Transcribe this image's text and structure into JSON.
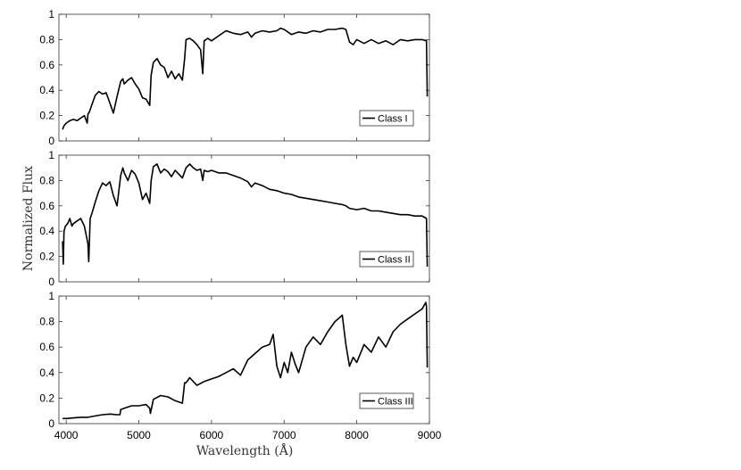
{
  "chart_data": {
    "type": "line",
    "xlabel": "Wavelength (Å)",
    "ylabel": "Normalized Flux",
    "xlim": [
      3900,
      9000
    ],
    "ylim": [
      0,
      1
    ],
    "xticks": [
      "4000",
      "5000",
      "6000",
      "7000",
      "8000",
      "9000"
    ],
    "yticks": [
      "0",
      "0.2",
      "0.4",
      "0.6",
      "0.8",
      "1"
    ],
    "line_color": "#000000",
    "legend_position": "bottom-right",
    "panels": [
      {
        "legend": "Class I",
        "x": [
          3950,
          3970,
          4000,
          4050,
          4100,
          4150,
          4200,
          4250,
          4290,
          4300,
          4320,
          4350,
          4400,
          4450,
          4500,
          4550,
          4600,
          4650,
          4700,
          4750,
          4780,
          4800,
          4850,
          4900,
          4950,
          5000,
          5050,
          5100,
          5150,
          5170,
          5200,
          5250,
          5300,
          5350,
          5400,
          5450,
          5500,
          5550,
          5600,
          5630,
          5650,
          5700,
          5750,
          5800,
          5850,
          5880,
          5900,
          5950,
          6000,
          6100,
          6200,
          6300,
          6400,
          6500,
          6550,
          6600,
          6700,
          6800,
          6900,
          6950,
          7000,
          7100,
          7200,
          7300,
          7400,
          7500,
          7600,
          7700,
          7800,
          7850,
          7900,
          7950,
          8000,
          8100,
          8200,
          8300,
          8400,
          8500,
          8600,
          8700,
          8800,
          8900,
          8960,
          8970
        ],
        "y": [
          0.09,
          0.12,
          0.14,
          0.16,
          0.17,
          0.16,
          0.18,
          0.2,
          0.14,
          0.21,
          0.23,
          0.28,
          0.36,
          0.39,
          0.37,
          0.38,
          0.3,
          0.22,
          0.35,
          0.47,
          0.49,
          0.45,
          0.48,
          0.5,
          0.45,
          0.41,
          0.34,
          0.33,
          0.28,
          0.52,
          0.62,
          0.65,
          0.6,
          0.58,
          0.5,
          0.55,
          0.49,
          0.53,
          0.48,
          0.65,
          0.8,
          0.81,
          0.79,
          0.76,
          0.72,
          0.53,
          0.79,
          0.81,
          0.79,
          0.83,
          0.87,
          0.85,
          0.84,
          0.86,
          0.82,
          0.85,
          0.87,
          0.86,
          0.87,
          0.89,
          0.88,
          0.84,
          0.86,
          0.85,
          0.87,
          0.86,
          0.88,
          0.88,
          0.89,
          0.88,
          0.78,
          0.76,
          0.8,
          0.77,
          0.8,
          0.77,
          0.79,
          0.76,
          0.8,
          0.79,
          0.8,
          0.8,
          0.79,
          0.35
        ]
      },
      {
        "legend": "Class II",
        "x": [
          3950,
          3960,
          3970,
          3990,
          4020,
          4050,
          4080,
          4100,
          4150,
          4200,
          4250,
          4300,
          4310,
          4330,
          4360,
          4400,
          4450,
          4500,
          4550,
          4600,
          4650,
          4700,
          4750,
          4780,
          4800,
          4850,
          4900,
          4950,
          5000,
          5050,
          5100,
          5150,
          5170,
          5200,
          5250,
          5300,
          5350,
          5400,
          5450,
          5500,
          5550,
          5600,
          5650,
          5700,
          5750,
          5800,
          5850,
          5880,
          5900,
          5950,
          6000,
          6100,
          6200,
          6300,
          6400,
          6500,
          6550,
          6600,
          6700,
          6800,
          6900,
          7000,
          7100,
          7200,
          7300,
          7400,
          7500,
          7600,
          7700,
          7800,
          7850,
          7900,
          8000,
          8100,
          8200,
          8300,
          8400,
          8500,
          8600,
          8700,
          8800,
          8900,
          8960,
          8970
        ],
        "y": [
          0.32,
          0.14,
          0.4,
          0.44,
          0.46,
          0.5,
          0.44,
          0.46,
          0.48,
          0.5,
          0.44,
          0.3,
          0.16,
          0.5,
          0.55,
          0.63,
          0.72,
          0.78,
          0.76,
          0.79,
          0.68,
          0.6,
          0.84,
          0.9,
          0.86,
          0.8,
          0.88,
          0.85,
          0.78,
          0.65,
          0.7,
          0.62,
          0.8,
          0.91,
          0.93,
          0.86,
          0.89,
          0.87,
          0.83,
          0.88,
          0.85,
          0.82,
          0.9,
          0.93,
          0.9,
          0.88,
          0.89,
          0.8,
          0.88,
          0.87,
          0.88,
          0.86,
          0.86,
          0.84,
          0.82,
          0.79,
          0.75,
          0.78,
          0.76,
          0.73,
          0.72,
          0.7,
          0.69,
          0.67,
          0.66,
          0.65,
          0.64,
          0.63,
          0.62,
          0.61,
          0.6,
          0.58,
          0.57,
          0.58,
          0.56,
          0.56,
          0.55,
          0.54,
          0.53,
          0.53,
          0.52,
          0.52,
          0.5,
          0.12
        ]
      },
      {
        "legend": "Class III",
        "x": [
          3950,
          4000,
          4100,
          4200,
          4300,
          4400,
          4500,
          4600,
          4700,
          4740,
          4750,
          4800,
          4900,
          5000,
          5100,
          5150,
          5160,
          5200,
          5300,
          5400,
          5500,
          5600,
          5630,
          5650,
          5700,
          5750,
          5800,
          5900,
          6000,
          6100,
          6200,
          6300,
          6400,
          6500,
          6600,
          6700,
          6800,
          6850,
          6900,
          6950,
          7000,
          7050,
          7100,
          7150,
          7200,
          7300,
          7400,
          7500,
          7600,
          7700,
          7800,
          7850,
          7900,
          7950,
          8000,
          8100,
          8200,
          8300,
          8400,
          8500,
          8600,
          8700,
          8800,
          8900,
          8950,
          8960,
          8970
        ],
        "y": [
          0.04,
          0.04,
          0.045,
          0.05,
          0.05,
          0.06,
          0.07,
          0.075,
          0.07,
          0.07,
          0.11,
          0.12,
          0.14,
          0.14,
          0.15,
          0.12,
          0.08,
          0.19,
          0.22,
          0.21,
          0.18,
          0.16,
          0.32,
          0.32,
          0.36,
          0.33,
          0.3,
          0.33,
          0.35,
          0.37,
          0.4,
          0.43,
          0.38,
          0.5,
          0.55,
          0.6,
          0.62,
          0.7,
          0.45,
          0.36,
          0.48,
          0.4,
          0.56,
          0.47,
          0.4,
          0.6,
          0.68,
          0.62,
          0.72,
          0.8,
          0.85,
          0.62,
          0.45,
          0.52,
          0.48,
          0.62,
          0.56,
          0.68,
          0.6,
          0.72,
          0.78,
          0.82,
          0.86,
          0.9,
          0.95,
          0.92,
          0.44
        ]
      }
    ]
  }
}
